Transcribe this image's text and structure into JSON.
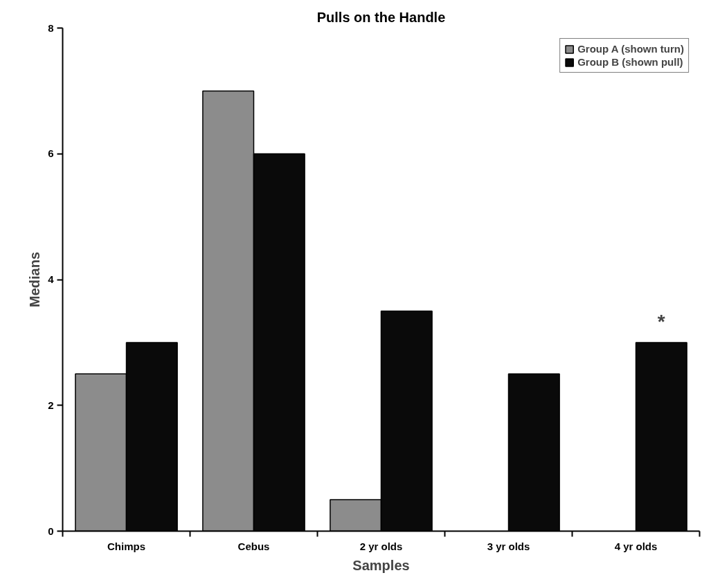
{
  "chart_data": {
    "type": "bar",
    "title": "Pulls on the Handle",
    "xlabel": "Samples",
    "ylabel": "Medians",
    "categories": [
      "Chimps",
      "Cebus",
      "2 yr olds",
      "3 yr olds",
      "4 yr olds"
    ],
    "series": [
      {
        "name": "Group A (shown turn)",
        "color": "#8c8c8c",
        "values": [
          2.5,
          7,
          0.5,
          null,
          null
        ]
      },
      {
        "name": "Group B (shown pull)",
        "color": "#0a0a0a",
        "values": [
          3,
          6,
          3.5,
          2.5,
          3
        ]
      }
    ],
    "ylim": [
      0,
      8
    ],
    "yticks": [
      0,
      2,
      4,
      6,
      8
    ],
    "grid": false,
    "legend": "top right",
    "annotations": [
      {
        "text": "*",
        "x": "4 yr olds",
        "y": 3
      }
    ]
  }
}
